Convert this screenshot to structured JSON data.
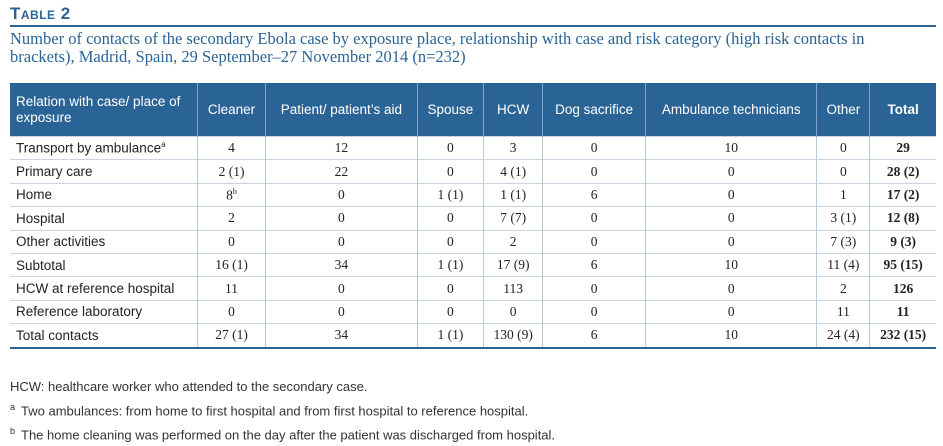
{
  "table_label": "Table 2",
  "caption": "Number of contacts of the secondary Ebola case by exposure place, relationship with case and risk category (high risk contacts in brackets), Madrid, Spain, 29 September–27 November 2014 (n=232)",
  "header": {
    "relation": "Relation with case/ place of exposure",
    "columns": [
      "Cleaner",
      "Patient/ patient’s aid",
      "Spouse",
      "HCW",
      "Dog sacrifice",
      "Ambulance technicians",
      "Other"
    ],
    "total": "Total"
  },
  "rows": [
    {
      "label": "Transport by ambulance",
      "sup": "a",
      "cells": [
        "4",
        "12",
        "0",
        "3",
        "0",
        "10",
        "0"
      ],
      "cell_sup": [
        "",
        "",
        "",
        "",
        "",
        "",
        ""
      ],
      "total": "29"
    },
    {
      "label": "Primary care",
      "sup": "",
      "cells": [
        "2 (1)",
        "22",
        "0",
        "4 (1)",
        "0",
        "0",
        "0"
      ],
      "cell_sup": [
        "",
        "",
        "",
        "",
        "",
        "",
        ""
      ],
      "total": "28 (2)"
    },
    {
      "label": "Home",
      "sup": "",
      "cells": [
        "8",
        "0",
        "1 (1)",
        "1 (1)",
        "6",
        "0",
        "1"
      ],
      "cell_sup": [
        "b",
        "",
        "",
        "",
        "",
        "",
        ""
      ],
      "total": "17 (2)"
    },
    {
      "label": "Hospital",
      "sup": "",
      "cells": [
        "2",
        "0",
        "0",
        "7 (7)",
        "0",
        "0",
        "3 (1)"
      ],
      "cell_sup": [
        "",
        "",
        "",
        "",
        "",
        "",
        ""
      ],
      "total": "12 (8)"
    },
    {
      "label": "Other activities",
      "sup": "",
      "cells": [
        "0",
        "0",
        "0",
        "2",
        "0",
        "0",
        "7 (3)"
      ],
      "cell_sup": [
        "",
        "",
        "",
        "",
        "",
        "",
        ""
      ],
      "total": "9 (3)"
    },
    {
      "label": "Subtotal",
      "sup": "",
      "cells": [
        "16 (1)",
        "34",
        "1 (1)",
        "17 (9)",
        "6",
        "10",
        "11 (4)"
      ],
      "cell_sup": [
        "",
        "",
        "",
        "",
        "",
        "",
        ""
      ],
      "total": "95 (15)"
    },
    {
      "label": "HCW at reference hospital",
      "sup": "",
      "cells": [
        "11",
        "0",
        "0",
        "113",
        "0",
        "0",
        "2"
      ],
      "cell_sup": [
        "",
        "",
        "",
        "",
        "",
        "",
        ""
      ],
      "total": "126"
    },
    {
      "label": "Reference laboratory",
      "sup": "",
      "cells": [
        "0",
        "0",
        "0",
        "0",
        "0",
        "0",
        "11"
      ],
      "cell_sup": [
        "",
        "",
        "",
        "",
        "",
        "",
        ""
      ],
      "total": "11"
    },
    {
      "label": "Total contacts",
      "sup": "",
      "cells": [
        "27 (1)",
        "34",
        "1 (1)",
        "130 (9)",
        "6",
        "10",
        "24 (4)"
      ],
      "cell_sup": [
        "",
        "",
        "",
        "",
        "",
        "",
        ""
      ],
      "total": "232 (15)"
    }
  ],
  "footnotes": [
    {
      "mark": "",
      "text": "HCW: healthcare worker who attended to the secondary case."
    },
    {
      "mark": "a",
      "text": "Two ambulances: from home to first hospital and from first hospital to reference hospital."
    },
    {
      "mark": "b",
      "text": "The home cleaning was performed on the day after the patient was discharged from hospital."
    }
  ],
  "colors": {
    "accent": "#2a6496"
  }
}
